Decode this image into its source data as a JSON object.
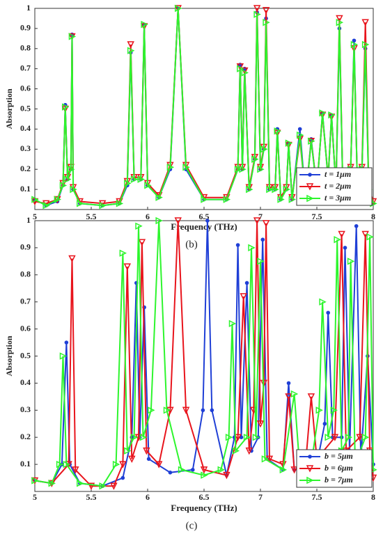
{
  "chart_data": [
    {
      "type": "line",
      "caption": "(b)",
      "xlabel": "Frequency (THz)",
      "ylabel": "Absorption",
      "xlim": [
        5,
        8
      ],
      "xticks": [
        5,
        {
          "value": 5.5,
          "label": "5.5"
        },
        6,
        {
          "value": 6.5,
          "label": "6.5"
        },
        7,
        {
          "value": 7.5,
          "label": "7.5"
        },
        8
      ],
      "ylim": [
        0,
        1
      ],
      "yticks": [
        0.1,
        0.2,
        0.3,
        0.4,
        0.5,
        0.6,
        0.7,
        0.8,
        0.9,
        1
      ],
      "legend": "lower right",
      "series": [
        {
          "name": "t = 1μm",
          "color": "#1f3fd6",
          "marker": "circle",
          "x": [
            5.0,
            5.1,
            5.2,
            5.25,
            5.27,
            5.29,
            5.32,
            5.33,
            5.34,
            5.4,
            5.6,
            5.75,
            5.82,
            5.85,
            5.88,
            5.94,
            5.97,
            6.0,
            6.1,
            6.2,
            6.27,
            6.34,
            6.5,
            6.7,
            6.8,
            6.82,
            6.84,
            6.86,
            6.9,
            6.95,
            6.97,
            7.0,
            7.03,
            7.05,
            7.08,
            7.13,
            7.15,
            7.18,
            7.23,
            7.25,
            7.28,
            7.35,
            7.4,
            7.45,
            7.5,
            7.55,
            7.6,
            7.63,
            7.67,
            7.7,
            7.73,
            7.8,
            7.83,
            7.86,
            7.9,
            7.93,
            7.96,
            8.0
          ],
          "values": [
            0.05,
            0.02,
            0.04,
            0.12,
            0.52,
            0.15,
            0.2,
            0.87,
            0.1,
            0.03,
            0.02,
            0.03,
            0.12,
            0.78,
            0.15,
            0.15,
            0.92,
            0.12,
            0.06,
            0.2,
            1.0,
            0.2,
            0.05,
            0.05,
            0.2,
            0.72,
            0.2,
            0.7,
            0.1,
            0.25,
            0.98,
            0.2,
            0.3,
            0.95,
            0.1,
            0.1,
            0.4,
            0.05,
            0.1,
            0.33,
            0.05,
            0.4,
            0.05,
            0.35,
            0.1,
            0.48,
            0.15,
            0.47,
            0.1,
            0.9,
            0.1,
            0.2,
            0.84,
            0.1,
            0.2,
            0.8,
            0.1,
            0.03
          ]
        },
        {
          "name": "t = 2μm",
          "color": "#e8141c",
          "marker": "tri-down",
          "x": [
            5.0,
            5.1,
            5.2,
            5.25,
            5.27,
            5.29,
            5.32,
            5.33,
            5.34,
            5.4,
            5.6,
            5.75,
            5.82,
            5.85,
            5.88,
            5.94,
            5.97,
            6.0,
            6.1,
            6.2,
            6.27,
            6.34,
            6.5,
            6.7,
            6.8,
            6.82,
            6.84,
            6.86,
            6.9,
            6.95,
            6.97,
            7.0,
            7.03,
            7.05,
            7.08,
            7.13,
            7.15,
            7.18,
            7.23,
            7.25,
            7.28,
            7.35,
            7.4,
            7.45,
            7.5,
            7.55,
            7.6,
            7.63,
            7.67,
            7.7,
            7.73,
            7.8,
            7.83,
            7.86,
            7.9,
            7.93,
            7.96,
            8.0
          ],
          "values": [
            0.04,
            0.03,
            0.05,
            0.13,
            0.5,
            0.16,
            0.21,
            0.86,
            0.11,
            0.04,
            0.03,
            0.04,
            0.14,
            0.82,
            0.16,
            0.16,
            0.91,
            0.13,
            0.07,
            0.22,
            1.0,
            0.22,
            0.06,
            0.06,
            0.21,
            0.71,
            0.21,
            0.69,
            0.11,
            0.26,
            1.0,
            0.21,
            0.31,
            0.99,
            0.11,
            0.11,
            0.38,
            0.06,
            0.11,
            0.32,
            0.06,
            0.35,
            0.06,
            0.34,
            0.11,
            0.47,
            0.16,
            0.46,
            0.11,
            0.95,
            0.11,
            0.21,
            0.8,
            0.11,
            0.21,
            0.93,
            0.11,
            0.04
          ]
        },
        {
          "name": "t = 3μm",
          "color": "#2df52d",
          "marker": "tri-right",
          "x": [
            5.0,
            5.1,
            5.2,
            5.25,
            5.27,
            5.29,
            5.32,
            5.33,
            5.34,
            5.4,
            5.6,
            5.75,
            5.82,
            5.85,
            5.88,
            5.94,
            5.97,
            6.0,
            6.1,
            6.2,
            6.27,
            6.34,
            6.5,
            6.7,
            6.8,
            6.82,
            6.84,
            6.86,
            6.9,
            6.95,
            6.97,
            7.0,
            7.03,
            7.05,
            7.08,
            7.13,
            7.15,
            7.18,
            7.23,
            7.25,
            7.28,
            7.35,
            7.4,
            7.45,
            7.5,
            7.55,
            7.6,
            7.63,
            7.67,
            7.7,
            7.73,
            7.8,
            7.83,
            7.86,
            7.9,
            7.93,
            7.96,
            8.0
          ],
          "values": [
            0.05,
            0.02,
            0.05,
            0.12,
            0.51,
            0.15,
            0.2,
            0.86,
            0.1,
            0.03,
            0.02,
            0.03,
            0.13,
            0.79,
            0.15,
            0.15,
            0.92,
            0.12,
            0.06,
            0.21,
            1.0,
            0.21,
            0.05,
            0.05,
            0.2,
            0.7,
            0.2,
            0.68,
            0.1,
            0.25,
            0.97,
            0.2,
            0.3,
            0.93,
            0.1,
            0.1,
            0.39,
            0.05,
            0.1,
            0.33,
            0.05,
            0.37,
            0.05,
            0.34,
            0.1,
            0.48,
            0.15,
            0.47,
            0.1,
            0.93,
            0.1,
            0.2,
            0.82,
            0.1,
            0.2,
            0.82,
            0.1,
            0.03
          ]
        }
      ]
    },
    {
      "type": "line",
      "caption": "(c)",
      "xlabel": "Frequency (THz)",
      "ylabel": "Absorption",
      "xlim": [
        5,
        8
      ],
      "xticks": [
        5,
        {
          "value": 5.5,
          "label": "5.5"
        },
        6,
        {
          "value": 6.5,
          "label": "6.5"
        },
        7,
        {
          "value": 7.5,
          "label": "7.5"
        },
        8
      ],
      "ylim": [
        0,
        1
      ],
      "yticks": [
        0.1,
        0.2,
        0.3,
        0.4,
        0.5,
        0.6,
        0.7,
        0.8,
        0.9,
        1
      ],
      "legend": "lower right",
      "series": [
        {
          "name": "b = 5μm",
          "color": "#1f3fd6",
          "marker": "circle",
          "x": [
            5.0,
            5.15,
            5.24,
            5.28,
            5.31,
            5.4,
            5.6,
            5.78,
            5.86,
            5.9,
            5.93,
            5.97,
            6.01,
            6.2,
            6.4,
            6.49,
            6.53,
            6.57,
            6.7,
            6.77,
            6.8,
            6.83,
            6.88,
            6.92,
            6.98,
            7.02,
            7.06,
            7.2,
            7.25,
            7.3,
            7.5,
            7.57,
            7.6,
            7.64,
            7.72,
            7.75,
            7.79,
            7.85,
            7.89,
            7.95,
            8.0
          ],
          "values": [
            0.04,
            0.03,
            0.1,
            0.55,
            0.1,
            0.03,
            0.02,
            0.05,
            0.2,
            0.77,
            0.2,
            0.68,
            0.12,
            0.07,
            0.08,
            0.3,
            1.0,
            0.3,
            0.06,
            0.2,
            0.91,
            0.2,
            0.77,
            0.15,
            0.2,
            0.93,
            0.12,
            0.08,
            0.4,
            0.08,
            0.1,
            0.25,
            0.66,
            0.2,
            0.2,
            0.9,
            0.15,
            0.98,
            0.12,
            0.5,
            0.1
          ]
        },
        {
          "name": "b = 6μm",
          "color": "#e8141c",
          "marker": "tri-down",
          "x": [
            5.0,
            5.15,
            5.3,
            5.33,
            5.36,
            5.5,
            5.7,
            5.78,
            5.82,
            5.86,
            5.92,
            5.95,
            5.99,
            6.1,
            6.2,
            6.27,
            6.34,
            6.5,
            6.7,
            6.8,
            6.85,
            6.9,
            6.94,
            6.97,
            7.0,
            7.03,
            7.05,
            7.08,
            7.2,
            7.25,
            7.3,
            7.4,
            7.45,
            7.5,
            7.66,
            7.72,
            7.76,
            7.88,
            7.93,
            7.97,
            8.0
          ],
          "values": [
            0.04,
            0.03,
            0.1,
            0.86,
            0.08,
            0.02,
            0.02,
            0.1,
            0.83,
            0.12,
            0.2,
            0.92,
            0.15,
            0.1,
            0.3,
            1.0,
            0.3,
            0.08,
            0.06,
            0.2,
            0.72,
            0.15,
            0.3,
            1.0,
            0.25,
            0.4,
            0.99,
            0.12,
            0.1,
            0.35,
            0.08,
            0.1,
            0.35,
            0.12,
            0.2,
            0.95,
            0.15,
            0.2,
            0.95,
            0.15,
            0.05
          ]
        },
        {
          "name": "b = 7μm",
          "color": "#2df52d",
          "marker": "tri-right",
          "x": [
            5.0,
            5.15,
            5.22,
            5.25,
            5.28,
            5.4,
            5.6,
            5.72,
            5.78,
            5.82,
            5.88,
            5.92,
            5.96,
            6.03,
            6.1,
            6.17,
            6.3,
            6.5,
            6.65,
            6.72,
            6.75,
            6.78,
            6.88,
            6.92,
            6.96,
            7.0,
            7.04,
            7.2,
            7.3,
            7.35,
            7.45,
            7.52,
            7.55,
            7.6,
            7.65,
            7.68,
            7.72,
            7.78,
            7.8,
            7.84,
            7.93,
            7.97,
            8.0
          ],
          "values": [
            0.04,
            0.03,
            0.1,
            0.5,
            0.1,
            0.03,
            0.02,
            0.1,
            0.88,
            0.15,
            0.2,
            0.98,
            0.2,
            0.3,
            1.0,
            0.3,
            0.08,
            0.06,
            0.08,
            0.2,
            0.62,
            0.15,
            0.2,
            0.9,
            0.2,
            0.85,
            0.12,
            0.08,
            0.36,
            0.08,
            0.1,
            0.3,
            0.7,
            0.2,
            0.3,
            0.93,
            0.15,
            0.2,
            0.85,
            0.1,
            0.2,
            0.94,
            0.08
          ]
        }
      ]
    }
  ]
}
